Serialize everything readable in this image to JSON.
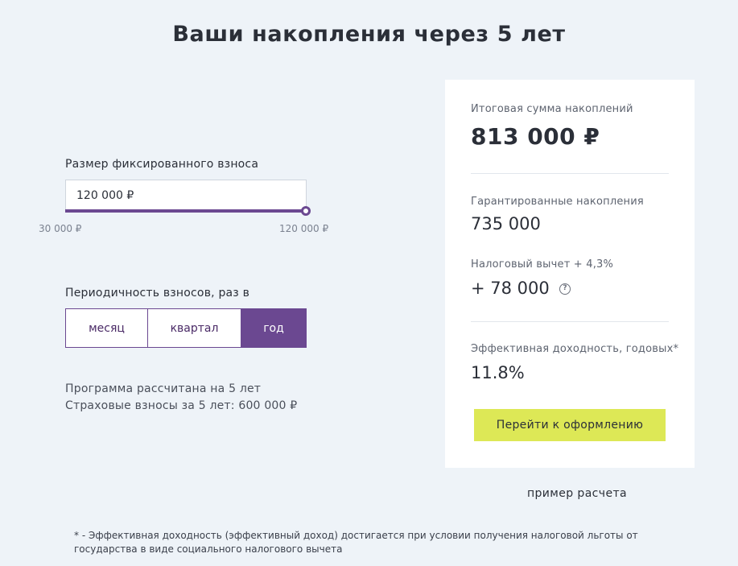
{
  "title": "Ваши накопления через 5 лет",
  "contribution": {
    "label": "Размер фиксированного взноса",
    "value": "120 000 ₽",
    "min_label": "30 000 ₽",
    "max_label": "120 000 ₽",
    "fill_percent": 100
  },
  "periodicity": {
    "label": "Периодичность взносов, раз в",
    "options": [
      "месяц",
      "квартал",
      "год"
    ],
    "selected": "год"
  },
  "program": {
    "line1": "Программа рассчитана на 5 лет",
    "line2": "Страховые взносы за 5 лет: 600 000 ₽"
  },
  "summary": {
    "total_label": "Итоговая сумма накоплений",
    "total_value": "813 000 ₽",
    "guaranteed_label": "Гарантированные накопления",
    "guaranteed_value": "735 000",
    "tax_label": "Налоговый вычет + 4,3%",
    "tax_value": "+ 78 000",
    "tax_help_icon": "question-circle-icon",
    "yield_label": "Эффективная доходность, годовых*",
    "yield_value": "11.8%",
    "cta_label": "Перейти к оформлению"
  },
  "example_link": "пример расчета",
  "footnote": "* - Эффективная доходность (эффективный доход) достигается при условии получения налоговой льготы от государства в виде социального налогового вычета",
  "colors": {
    "accent": "#6b4891",
    "cta": "#dde856",
    "background": "#eef3f8"
  }
}
